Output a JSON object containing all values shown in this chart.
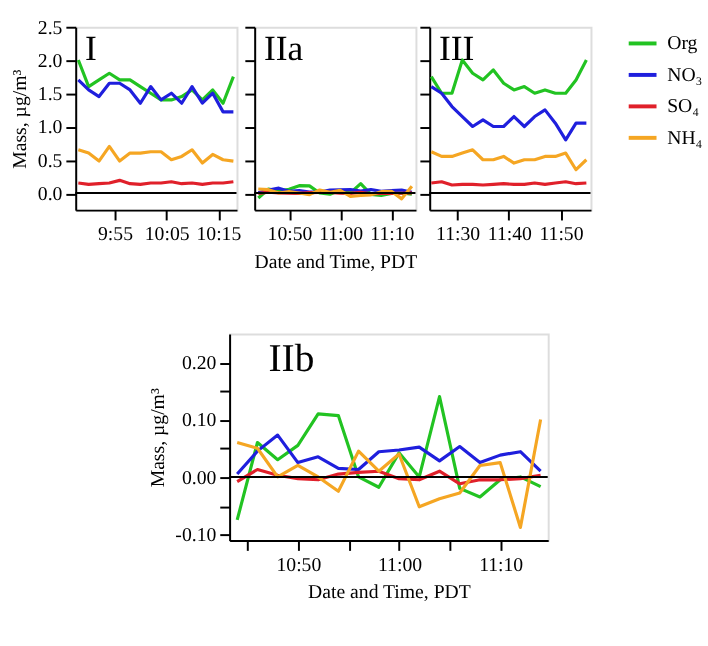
{
  "chart_data": [
    {
      "type": "line",
      "ylabel": "Mass, µg/m³",
      "annotations": [
        "I"
      ],
      "xlim": [
        9.79,
        10.31
      ],
      "ylim": [
        -0.25,
        2.5
      ],
      "xticks": [
        {
          "value": 9.9167,
          "label": "9:55"
        },
        {
          "value": 10.0833,
          "label": "10:05"
        },
        {
          "value": 10.25,
          "label": "10:15"
        }
      ],
      "yticks": [
        {
          "value": 0,
          "label": "0.0"
        },
        {
          "value": 0.5,
          "label": "0.5"
        },
        {
          "value": 1,
          "label": "1.0"
        },
        {
          "value": 1.5,
          "label": "1.5"
        },
        {
          "value": 2,
          "label": "2.0"
        },
        {
          "value": 2.5,
          "label": "2.5"
        }
      ],
      "x": [
        9.8,
        9.8333,
        9.8667,
        9.9,
        9.9333,
        9.9667,
        10.0,
        10.0333,
        10.0667,
        10.1,
        10.1333,
        10.1667,
        10.2,
        10.2333,
        10.2667,
        10.3
      ],
      "series": [
        {
          "color": "#22c322",
          "values": [
            2.0,
            1.6,
            1.7,
            1.8,
            1.7,
            1.7,
            1.6,
            1.5,
            1.4,
            1.4,
            1.45,
            1.55,
            1.4,
            1.55,
            1.35,
            1.75
          ]
        },
        {
          "color": "#1f1fdd",
          "values": [
            1.7,
            1.55,
            1.45,
            1.65,
            1.65,
            1.55,
            1.35,
            1.6,
            1.4,
            1.5,
            1.35,
            1.6,
            1.35,
            1.5,
            1.22,
            1.22
          ]
        },
        {
          "color": "#e0202a",
          "values": [
            0.15,
            0.13,
            0.14,
            0.15,
            0.19,
            0.14,
            0.13,
            0.15,
            0.15,
            0.17,
            0.14,
            0.15,
            0.13,
            0.15,
            0.15,
            0.17
          ]
        },
        {
          "color": "#f5a623",
          "values": [
            0.65,
            0.6,
            0.48,
            0.7,
            0.48,
            0.6,
            0.6,
            0.62,
            0.62,
            0.5,
            0.55,
            0.65,
            0.45,
            0.58,
            0.5,
            0.48
          ]
        }
      ],
      "ref_lines": [
        {
          "axis": "y",
          "value": 0,
          "color": "#000000"
        }
      ],
      "grid": false
    },
    {
      "type": "line",
      "xlabel": "Date and Time, PDT",
      "annotations": [
        "IIa"
      ],
      "xlim": [
        10.72,
        11.245
      ],
      "ylim": [
        -0.25,
        2.5
      ],
      "tick_labels": "x",
      "xticks": [
        {
          "value": 10.8333,
          "label": "10:50"
        },
        {
          "value": 11.0,
          "label": "11:00"
        },
        {
          "value": 11.1667,
          "label": "11:10"
        }
      ],
      "yticks": [
        {
          "value": 0,
          "label": null
        },
        {
          "value": 0.5,
          "label": null
        },
        {
          "value": 1,
          "label": null
        },
        {
          "value": 1.5,
          "label": null
        },
        {
          "value": 2,
          "label": null
        },
        {
          "value": 2.5,
          "label": null
        }
      ],
      "x": [
        10.7333,
        10.7667,
        10.8,
        10.8333,
        10.8667,
        10.9,
        10.9333,
        10.9667,
        11.0,
        11.0333,
        11.0667,
        11.1,
        11.1333,
        11.1667,
        11.2,
        11.2333
      ],
      "series": [
        {
          "color": "#22c322",
          "values": [
            -0.075,
            0.06,
            0.03,
            0.055,
            0.11,
            0.107,
            0.0,
            -0.018,
            0.042,
            0.0,
            0.14,
            -0.02,
            -0.035,
            -0.005,
            0.0,
            -0.017
          ]
        },
        {
          "color": "#1f1fdd",
          "values": [
            0.005,
            0.045,
            0.073,
            0.025,
            0.035,
            0.015,
            0.013,
            0.044,
            0.047,
            0.052,
            0.028,
            0.053,
            0.025,
            0.038,
            0.044,
            0.01
          ]
        },
        {
          "color": "#e0202a",
          "values": [
            -0.008,
            0.013,
            0.003,
            -0.003,
            -0.005,
            0.005,
            0.008,
            0.01,
            -0.003,
            -0.005,
            0.01,
            -0.012,
            -0.005,
            -0.005,
            -0.003,
            0.003
          ]
        },
        {
          "color": "#f5a623",
          "values": [
            0.06,
            0.05,
            0.0,
            0.02,
            0.0,
            -0.025,
            0.045,
            0.01,
            0.04,
            -0.052,
            -0.038,
            -0.028,
            0.02,
            0.025,
            -0.088,
            0.1
          ]
        }
      ],
      "ref_lines": [
        {
          "axis": "y",
          "value": 0,
          "color": "#000000"
        }
      ],
      "grid": false
    },
    {
      "type": "line",
      "annotations": [
        "III"
      ],
      "xlim": [
        11.41,
        11.93
      ],
      "ylim": [
        -0.25,
        2.5
      ],
      "tick_labels": "x",
      "legend": "right",
      "xticks": [
        {
          "value": 11.5,
          "label": "11:30"
        },
        {
          "value": 11.6667,
          "label": "11:40"
        },
        {
          "value": 11.8333,
          "label": "11:50"
        }
      ],
      "yticks": [
        {
          "value": 0,
          "label": null
        },
        {
          "value": 0.5,
          "label": null
        },
        {
          "value": 1,
          "label": null
        },
        {
          "value": 1.5,
          "label": null
        },
        {
          "value": 2,
          "label": null
        },
        {
          "value": 2.5,
          "label": null
        }
      ],
      "x": [
        11.4167,
        11.45,
        11.4833,
        11.5167,
        11.55,
        11.5833,
        11.6167,
        11.65,
        11.6833,
        11.7167,
        11.75,
        11.7833,
        11.8167,
        11.85,
        11.8833,
        11.9167
      ],
      "series": [
        {
          "name": "Org",
          "color": "#22c322",
          "values": [
            1.75,
            1.5,
            1.5,
            2.0,
            1.8,
            1.7,
            1.85,
            1.65,
            1.55,
            1.6,
            1.5,
            1.55,
            1.5,
            1.5,
            1.7,
            2.0
          ]
        },
        {
          "name": "NO₃",
          "color": "#1f1fdd",
          "values": [
            1.6,
            1.5,
            1.3,
            1.15,
            1.0,
            1.1,
            1.0,
            1.0,
            1.15,
            1.0,
            1.15,
            1.25,
            1.05,
            0.8,
            1.05,
            1.05
          ]
        },
        {
          "name": "SO₄",
          "color": "#e0202a",
          "values": [
            0.15,
            0.17,
            0.12,
            0.13,
            0.13,
            0.12,
            0.13,
            0.14,
            0.13,
            0.13,
            0.15,
            0.13,
            0.15,
            0.17,
            0.14,
            0.15
          ]
        },
        {
          "name": "NH₄",
          "color": "#f5a623",
          "values": [
            0.62,
            0.55,
            0.55,
            0.6,
            0.65,
            0.5,
            0.5,
            0.55,
            0.45,
            0.5,
            0.5,
            0.55,
            0.55,
            0.6,
            0.35,
            0.5
          ]
        }
      ],
      "ref_lines": [
        {
          "axis": "y",
          "value": 0,
          "color": "#000000"
        }
      ],
      "grid": false
    },
    {
      "type": "line",
      "xlabel": "Date and Time, PDT",
      "ylabel": "Mass, µg/m³",
      "annotations": [
        "IIb"
      ],
      "xlim": [
        10.72,
        11.245
      ],
      "ylim": [
        -0.11,
        0.25
      ],
      "xticks": [
        {
          "value": 10.75,
          "label": null
        },
        {
          "value": 10.8333,
          "label": "10:50"
        },
        {
          "value": 10.9167,
          "label": null
        },
        {
          "value": 11.0,
          "label": "11:00"
        },
        {
          "value": 11.0833,
          "label": null
        },
        {
          "value": 11.1667,
          "label": "11:10"
        }
      ],
      "yticks": [
        {
          "value": -0.1,
          "label": "-0.10"
        },
        {
          "value": -0.05,
          "label": null
        },
        {
          "value": 0,
          "label": "0.00"
        },
        {
          "value": 0.05,
          "label": null
        },
        {
          "value": 0.1,
          "label": "0.10"
        },
        {
          "value": 0.15,
          "label": null
        },
        {
          "value": 0.2,
          "label": "0.20"
        }
      ],
      "x": [
        10.7333,
        10.7667,
        10.8,
        10.8333,
        10.8667,
        10.9,
        10.9333,
        10.9667,
        11.0,
        11.0333,
        11.0667,
        11.1,
        11.1333,
        11.1667,
        11.2,
        11.2333
      ],
      "series": [
        {
          "color": "#22c322",
          "values": [
            -0.075,
            0.06,
            0.03,
            0.055,
            0.11,
            0.107,
            0.0,
            -0.018,
            0.042,
            0.0,
            0.14,
            -0.02,
            -0.035,
            -0.005,
            0.0,
            -0.017
          ]
        },
        {
          "color": "#1f1fdd",
          "values": [
            0.005,
            0.045,
            0.073,
            0.025,
            0.035,
            0.015,
            0.013,
            0.044,
            0.047,
            0.052,
            0.028,
            0.053,
            0.025,
            0.038,
            0.044,
            0.01
          ]
        },
        {
          "color": "#e0202a",
          "values": [
            -0.008,
            0.013,
            0.003,
            -0.003,
            -0.005,
            0.005,
            0.008,
            0.01,
            -0.003,
            -0.005,
            0.01,
            -0.012,
            -0.005,
            -0.005,
            -0.003,
            0.003
          ]
        },
        {
          "color": "#f5a623",
          "values": [
            0.06,
            0.05,
            0.0,
            0.02,
            0.0,
            -0.025,
            0.045,
            0.01,
            0.04,
            -0.052,
            -0.038,
            -0.028,
            0.02,
            0.025,
            -0.088,
            0.1
          ]
        }
      ],
      "ref_lines": [
        {
          "axis": "y",
          "value": 0,
          "color": "#000000"
        }
      ],
      "grid": false
    }
  ]
}
